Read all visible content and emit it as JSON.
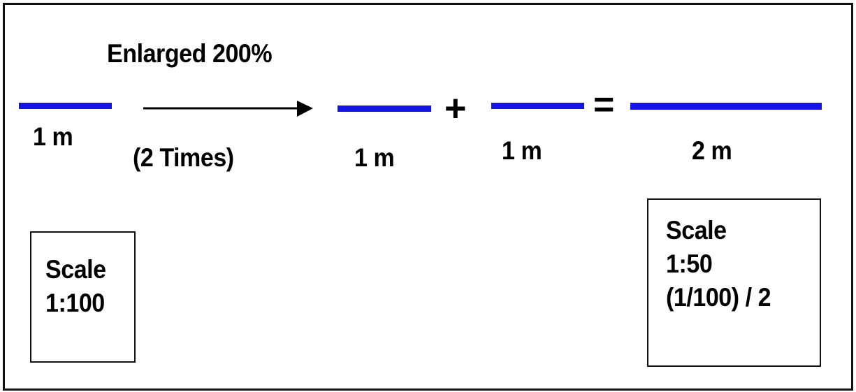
{
  "title": "Enlarged 200%",
  "arrow_label": "(2 Times)",
  "line_color": "#1414e6",
  "segments": [
    {
      "label": "1 m"
    },
    {
      "label": "1 m"
    },
    {
      "label": "1 m"
    },
    {
      "label": "2 m"
    }
  ],
  "operators": {
    "plus": "+",
    "equals": "="
  },
  "left_box": {
    "line1": "Scale",
    "line2": "1:100"
  },
  "right_box": {
    "line1": "Scale",
    "line2": "1:50",
    "line3": "(1/100) / 2"
  }
}
